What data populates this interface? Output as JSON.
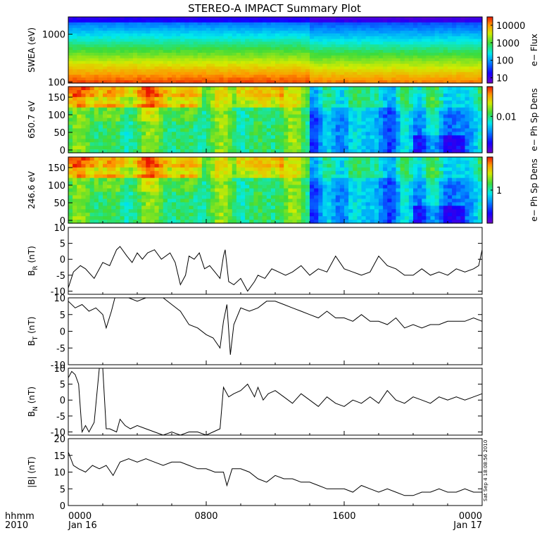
{
  "title": "STEREO-A IMPACT Summary Plot",
  "xaxis": {
    "corner_labels": [
      "hhmm",
      "2010"
    ],
    "ticks": [
      {
        "hhmm": "0000",
        "date": "Jan 16",
        "hour": 0
      },
      {
        "hhmm": "0800",
        "date": "",
        "hour": 8
      },
      {
        "hhmm": "1600",
        "date": "",
        "hour": 16
      },
      {
        "hhmm": "0000",
        "date": "Jan 17",
        "hour": 24
      }
    ],
    "range_hours": [
      0,
      24
    ]
  },
  "timestamp": "Sat Sep  4 18:08:56 2010",
  "chart_data": [
    {
      "type": "heatmap",
      "ylabel": "SWEA (eV)",
      "yscale": "log",
      "ylim": [
        95,
        2300
      ],
      "yticks": [
        {
          "v": 100,
          "l": "100"
        },
        {
          "v": 1000,
          "l": "1000"
        }
      ],
      "colorbar": {
        "label": "e− Flux",
        "scale": "log",
        "range": [
          5,
          30000
        ],
        "ticks": [
          {
            "v": 10,
            "l": "10"
          },
          {
            "v": 100,
            "l": "100"
          },
          {
            "v": 1000,
            "l": "1000"
          },
          {
            "v": 10000,
            "l": "10000"
          }
        ]
      },
      "description": "energy spectrogram: flux high at low energy (red/orange ~100-200 eV) decreasing to blue/violet above ~1500 eV"
    },
    {
      "type": "heatmap",
      "ylabel": "650.7 eV",
      "ylim": [
        -8,
        180
      ],
      "yticks": [
        {
          "v": 0,
          "l": "0"
        },
        {
          "v": 50,
          "l": "50"
        },
        {
          "v": 100,
          "l": "100"
        },
        {
          "v": 150,
          "l": "150"
        }
      ],
      "colorbar": {
        "label": "e− Ph Sp Dens",
        "ticks": [
          {
            "v": 0.55,
            "l": "0.01"
          }
        ]
      },
      "description": "pitch-angle distribution: high (red) near 180 deg from 00:00-05:00 and ~10:00-12:30, lower (cyan/blue) after 14:00"
    },
    {
      "type": "heatmap",
      "ylabel": "246.6 eV",
      "ylim": [
        -8,
        180
      ],
      "yticks": [
        {
          "v": 0,
          "l": "0"
        },
        {
          "v": 50,
          "l": "50"
        },
        {
          "v": 100,
          "l": "100"
        },
        {
          "v": 150,
          "l": "150"
        }
      ],
      "colorbar": {
        "label": "e− Ph Sp Dens",
        "ticks": [
          {
            "v": 0.5,
            "l": "1"
          }
        ]
      },
      "description": "pitch-angle distribution similar to 650.7 eV panel"
    },
    {
      "type": "line",
      "ylabel": "B_R (nT)",
      "ylim": [
        -11,
        10
      ],
      "yticks": [
        -10,
        -5,
        0,
        5,
        10
      ],
      "x": [
        0,
        0.3,
        0.7,
        1.0,
        1.5,
        2.0,
        2.4,
        2.8,
        3.0,
        3.4,
        3.7,
        4.0,
        4.3,
        4.6,
        5.0,
        5.4,
        5.9,
        6.2,
        6.5,
        6.8,
        7.0,
        7.3,
        7.6,
        7.9,
        8.2,
        8.5,
        8.8,
        9.0,
        9.1,
        9.3,
        9.6,
        10.0,
        10.4,
        10.8,
        11.0,
        11.4,
        11.8,
        12.2,
        12.6,
        13.0,
        13.5,
        14.0,
        14.5,
        15.0,
        15.5,
        16.0,
        16.5,
        17.0,
        17.5,
        18.0,
        18.5,
        19.0,
        19.5,
        20.0,
        20.5,
        21.0,
        21.5,
        22.0,
        22.5,
        23.0,
        23.5,
        23.8,
        24
      ],
      "y": [
        -9,
        -4,
        -2,
        -3,
        -6,
        -1,
        -2,
        3,
        4,
        1,
        -1,
        2,
        0,
        2,
        3,
        0,
        2,
        -1,
        -8,
        -5,
        1,
        0,
        2,
        -3,
        -2,
        -4,
        -6,
        1,
        3,
        -7,
        -8,
        -6,
        -10,
        -7,
        -5,
        -6,
        -3,
        -4,
        -5,
        -4,
        -2,
        -5,
        -3,
        -4,
        1,
        -3,
        -4,
        -5,
        -4,
        1,
        -2,
        -3,
        -5,
        -5,
        -3,
        -5,
        -4,
        -5,
        -3,
        -4,
        -3,
        -2,
        3
      ]
    },
    {
      "type": "line",
      "ylabel": "B_T (nT)",
      "ylim": [
        -10,
        10
      ],
      "yticks": [
        -10,
        -5,
        0,
        5,
        10
      ],
      "x": [
        0,
        0.4,
        0.8,
        1.2,
        1.6,
        2.0,
        2.2,
        2.5,
        2.7,
        3.0,
        3.5,
        4.0,
        4.5,
        5.0,
        5.5,
        6.0,
        6.5,
        7.0,
        7.5,
        8.0,
        8.4,
        8.8,
        9.0,
        9.2,
        9.4,
        9.6,
        10.0,
        10.5,
        11.0,
        11.5,
        12.0,
        12.5,
        13.0,
        13.5,
        14.0,
        14.5,
        15.0,
        15.5,
        16.0,
        16.5,
        17.0,
        17.5,
        18.0,
        18.5,
        19.0,
        19.5,
        20.0,
        20.5,
        21.0,
        21.5,
        22.0,
        22.5,
        23.0,
        23.5,
        24
      ],
      "y": [
        9,
        7,
        8,
        6,
        7,
        5,
        1,
        6,
        10,
        10,
        10,
        9,
        11,
        11,
        10,
        8,
        6,
        2,
        1,
        -1,
        -2,
        -5,
        3,
        8,
        -7,
        2,
        7,
        6,
        7,
        9,
        9,
        8,
        7,
        6,
        5,
        4,
        6,
        4,
        4,
        3,
        5,
        3,
        3,
        2,
        4,
        1,
        2,
        1,
        2,
        2,
        3,
        3,
        3,
        4,
        3
      ]
    },
    {
      "type": "line",
      "ylabel": "B_N (nT)",
      "ylim": [
        -11,
        10
      ],
      "yticks": [
        -10,
        -5,
        0,
        5,
        10
      ],
      "x": [
        0,
        0.2,
        0.4,
        0.6,
        0.8,
        1.0,
        1.2,
        1.5,
        1.8,
        2.0,
        2.2,
        2.4,
        2.8,
        3.0,
        3.3,
        3.6,
        4.0,
        4.5,
        5.0,
        5.5,
        6.0,
        6.5,
        7.0,
        7.5,
        8.0,
        8.4,
        8.8,
        9.0,
        9.3,
        9.6,
        10.0,
        10.4,
        10.8,
        11.0,
        11.3,
        11.6,
        12.0,
        12.5,
        13.0,
        13.5,
        14.0,
        14.5,
        15.0,
        15.5,
        16.0,
        16.5,
        17.0,
        17.5,
        18.0,
        18.5,
        19.0,
        19.5,
        20.0,
        20.5,
        21.0,
        21.5,
        22.0,
        22.5,
        23.0,
        23.5,
        24
      ],
      "y": [
        7,
        9,
        8,
        5,
        -10,
        -8,
        -10,
        -7,
        10,
        10,
        -9,
        -9,
        -10,
        -6,
        -8,
        -9,
        -8,
        -9,
        -10,
        -11,
        -10,
        -11,
        -10,
        -10,
        -11,
        -10,
        -9,
        4,
        1,
        2,
        3,
        5,
        1,
        4,
        0,
        2,
        3,
        1,
        -1,
        2,
        0,
        -2,
        1,
        -1,
        -2,
        0,
        -1,
        1,
        -1,
        3,
        0,
        -1,
        1,
        0,
        -1,
        1,
        0,
        1,
        0,
        1,
        2
      ]
    },
    {
      "type": "line",
      "ylabel": "|B| (nT)",
      "ylim": [
        0,
        20
      ],
      "yticks": [
        0,
        5,
        10,
        15,
        20
      ],
      "x": [
        0,
        0.3,
        0.6,
        1.0,
        1.4,
        1.8,
        2.2,
        2.6,
        3.0,
        3.5,
        4.0,
        4.5,
        5.0,
        5.5,
        6.0,
        6.5,
        7.0,
        7.5,
        8.0,
        8.5,
        9.0,
        9.2,
        9.5,
        10.0,
        10.5,
        11.0,
        11.5,
        12.0,
        12.5,
        13.0,
        13.5,
        14.0,
        14.5,
        15.0,
        15.5,
        16.0,
        16.5,
        17.0,
        17.5,
        18.0,
        18.5,
        19.0,
        19.5,
        20.0,
        20.5,
        21.0,
        21.5,
        22.0,
        22.5,
        23.0,
        23.5,
        24
      ],
      "y": [
        16,
        12,
        11,
        10,
        12,
        11,
        12,
        9,
        13,
        14,
        13,
        14,
        13,
        12,
        13,
        13,
        12,
        11,
        11,
        10,
        10,
        6,
        11,
        11,
        10,
        8,
        7,
        9,
        8,
        8,
        7,
        7,
        6,
        5,
        5,
        5,
        4,
        6,
        5,
        4,
        5,
        4,
        3,
        3,
        4,
        4,
        5,
        4,
        4,
        5,
        4,
        4
      ]
    }
  ]
}
